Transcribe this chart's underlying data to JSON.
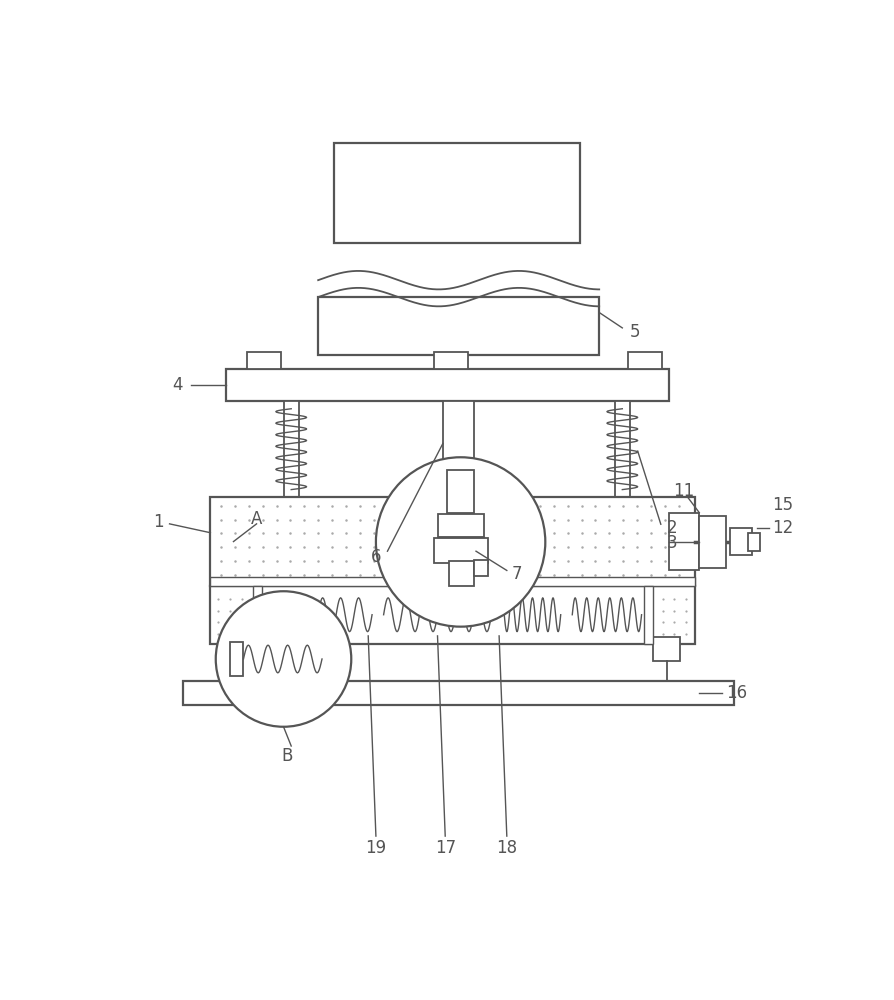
{
  "bg_color": "#ffffff",
  "line_color": "#555555",
  "label_color": "#000000",
  "figsize": [
    8.95,
    10.0
  ],
  "dpi": 100
}
